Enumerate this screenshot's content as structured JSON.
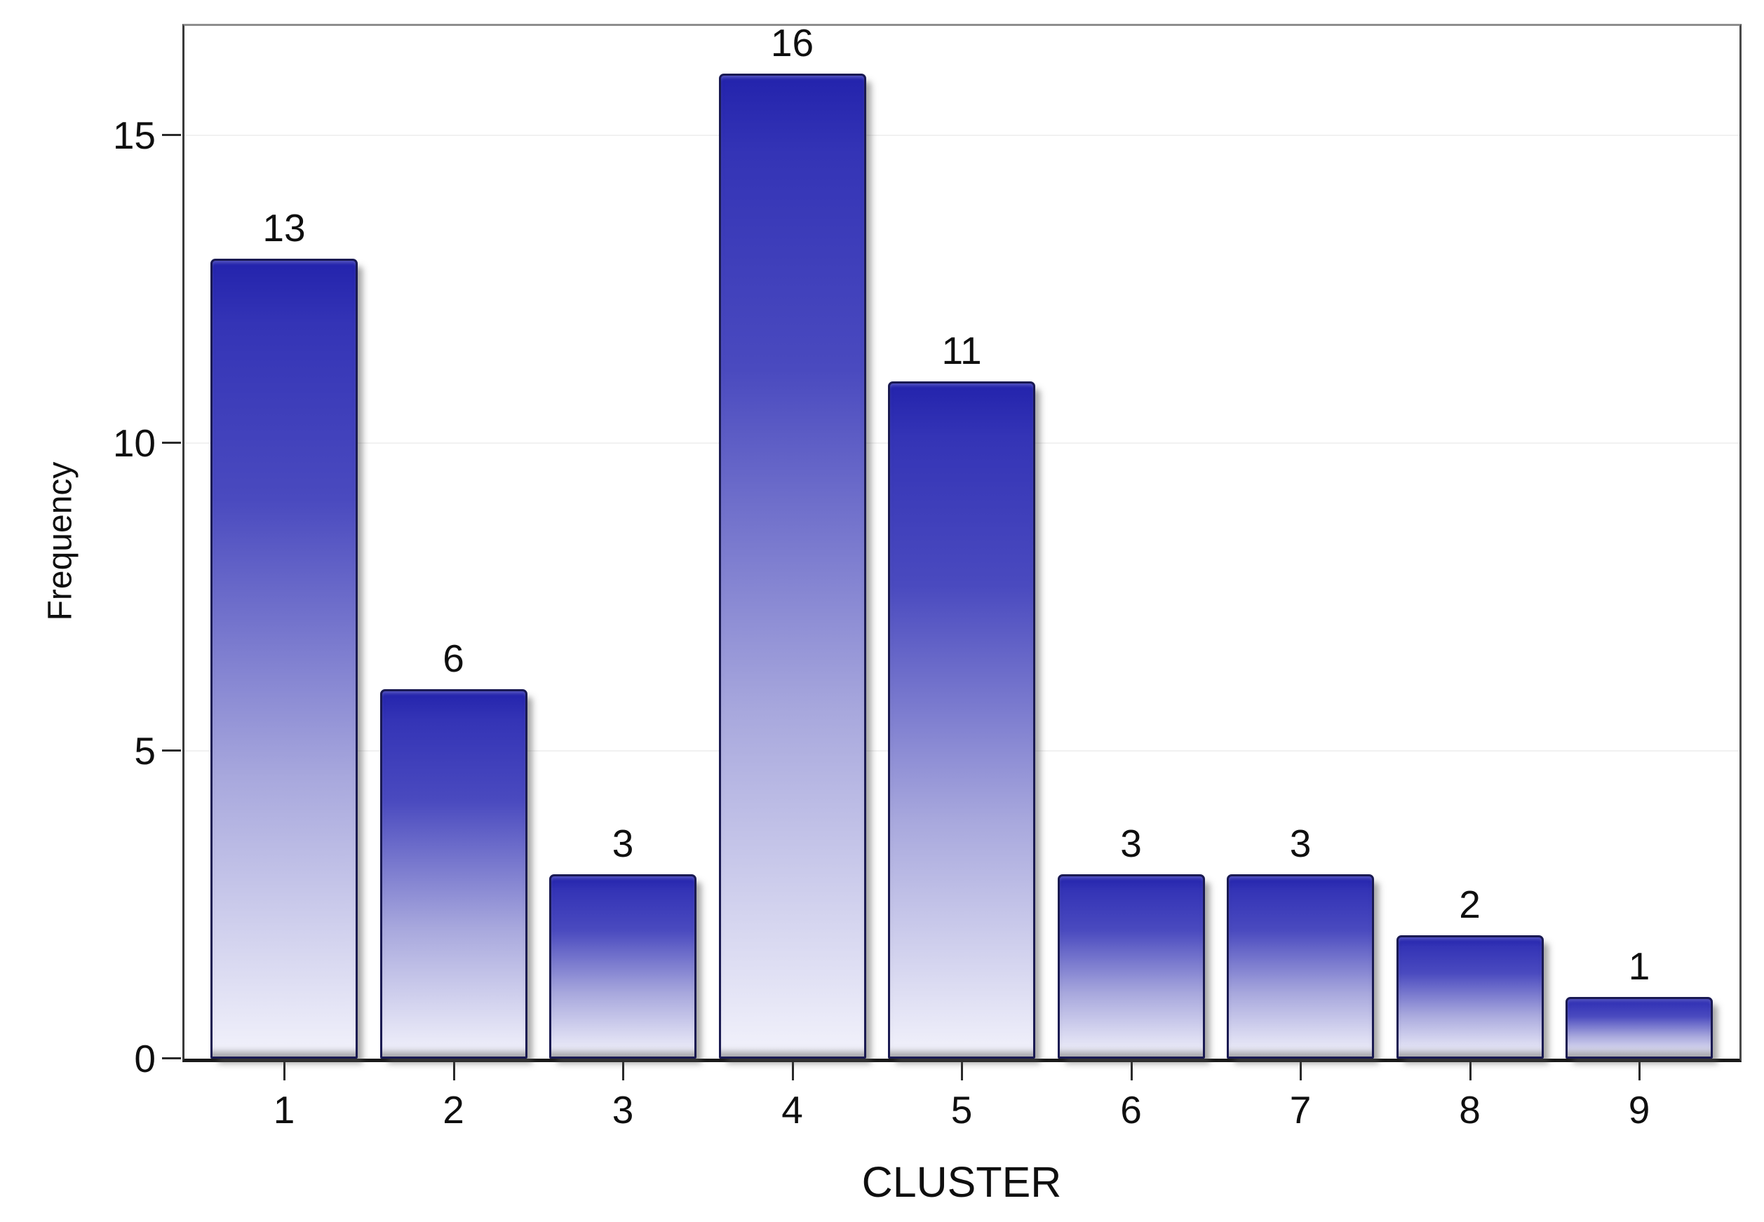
{
  "chart_data": {
    "type": "bar",
    "title": "",
    "xlabel": "CLUSTER",
    "ylabel": "Frequency",
    "categories": [
      "1",
      "2",
      "3",
      "4",
      "5",
      "6",
      "7",
      "8",
      "9"
    ],
    "values": [
      13,
      6,
      3,
      16,
      11,
      3,
      3,
      2,
      1
    ],
    "bar_value_labels": [
      "13",
      "6",
      "3",
      "16",
      "11",
      "3",
      "3",
      "2",
      "1"
    ],
    "ytick_labels": [
      "0",
      "5",
      "10",
      "15"
    ],
    "ytick_values": [
      0,
      5,
      10,
      15
    ],
    "ylim": [
      0,
      16.8
    ],
    "grid": "horizontal",
    "legend_position": "none",
    "colors": {
      "bar_gradient_top": "#2323ac",
      "bar_gradient_bottom": "#f2f2fb",
      "bar_border": "#1a1a52",
      "bar_shadow": "rgba(80,80,80,0.5)",
      "gridline": "#f1f1f1",
      "axis_line": "#2a2a2a",
      "frame_top": "#8e8e8e",
      "background": "#ffffff",
      "text": "#0f0f0f"
    }
  }
}
